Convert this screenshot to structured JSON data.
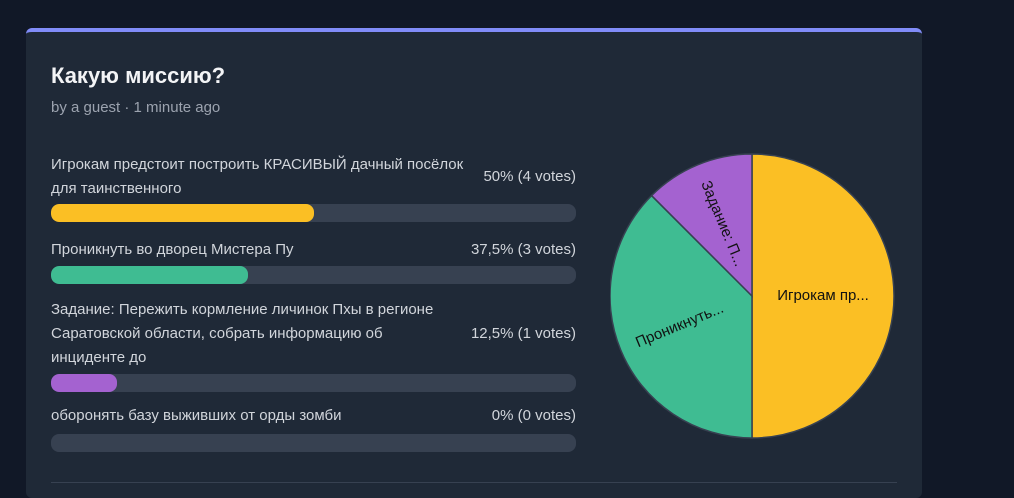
{
  "poll": {
    "title": "Какую миссию?",
    "meta": "by a guest · 1 minute ago",
    "accent_color": "#818cf8",
    "options": [
      {
        "label": "Игрокам предстоит построить КРАСИВЫЙ дачный посёлок для таинственного",
        "result": "50% (4 votes)",
        "percent": 50,
        "color": "#fbbf24"
      },
      {
        "label": "Проникнуть во дворец Мистера Пу",
        "result": "37,5% (3 votes)",
        "percent": 37.5,
        "color": "#3fbc92"
      },
      {
        "label": "Задание: Пережить кормление личинок Пхы в регионе Саратовской области, собрать информацию об инциденте до",
        "result": "12,5% (1 votes)",
        "percent": 12.5,
        "color": "#a462d0"
      },
      {
        "label": "оборонять базу выживших от орды зомби",
        "result": "0% (0 votes)",
        "percent": 0,
        "color": "#3fbc92"
      }
    ]
  },
  "chart_data": {
    "type": "pie",
    "categories": [
      "Игрокам предстоит построить КРАСИВЫЙ дачный посёлок для таинственного",
      "Проникнуть во дворец Мистера Пу",
      "Задание: Пережить кормление личинок Пхы в регионе Саратовской области, собрать информацию об инциденте до",
      "оборонять базу выживших от орды зомби"
    ],
    "values": [
      4,
      3,
      1,
      0
    ],
    "slice_labels": [
      "Игрокам пр...",
      "Проникнуть...",
      "Задание: П...",
      ""
    ],
    "colors": [
      "#fbbf24",
      "#3fbc92",
      "#a462d0",
      "#3fbc92"
    ]
  }
}
